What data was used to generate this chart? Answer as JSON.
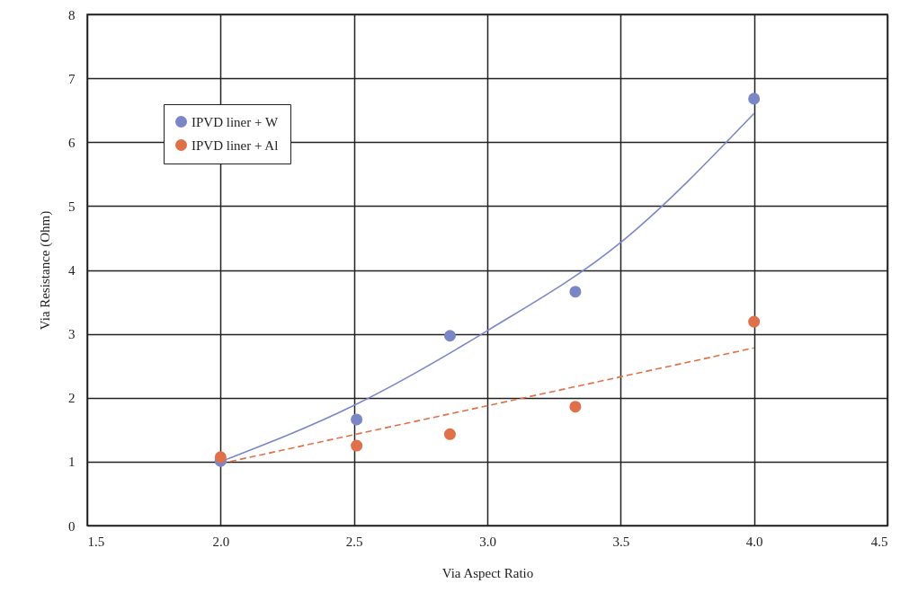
{
  "chart_data": {
    "type": "scatter",
    "xlabel": "Via Aspect Ratio",
    "ylabel": "Via Resistance (Ohm)",
    "xlim": [
      1.5,
      4.5
    ],
    "xticks": [
      {
        "value": 1.5,
        "label": "1.5"
      },
      {
        "value": 2.0,
        "label": "2.0"
      },
      {
        "value": 2.5,
        "label": "2.5"
      },
      {
        "value": 3.0,
        "label": "3.0"
      },
      {
        "value": 3.5,
        "label": "3.5"
      },
      {
        "value": 4.0,
        "label": "4.0"
      },
      {
        "value": 4.5,
        "label": "4.5"
      }
    ],
    "ylim": [
      0,
      8
    ],
    "yticks": [
      0,
      1,
      2,
      3,
      4,
      5,
      6,
      7,
      8
    ],
    "grid": true,
    "legend": "top left",
    "marker": "circle",
    "series": [
      {
        "name": "IPVD liner + W",
        "color": "#7b86c6",
        "x": [
          2.0,
          2.51,
          2.86,
          3.33,
          4.0
        ],
        "values": [
          1.01,
          1.66,
          2.97,
          3.66,
          6.68
        ]
      },
      {
        "name": "IPVD liner + Al",
        "color": "#e0704a",
        "x": [
          2.0,
          2.51,
          2.86,
          3.33,
          4.0
        ],
        "values": [
          1.07,
          1.25,
          1.43,
          1.86,
          3.19
        ]
      },
      {
        "type": "line",
        "color": "#7b86c6",
        "line_style": "solid",
        "marker": "none",
        "x": [
          2.0,
          2.5,
          3.0,
          3.5,
          4.0
        ],
        "values": [
          1.0,
          1.88,
          3.05,
          4.43,
          6.45
        ]
      },
      {
        "type": "line",
        "color": "#e0704a",
        "line_style": "dashed",
        "marker": "none",
        "x": [
          2.0,
          4.0
        ],
        "values": [
          0.97,
          2.78
        ]
      }
    ]
  }
}
